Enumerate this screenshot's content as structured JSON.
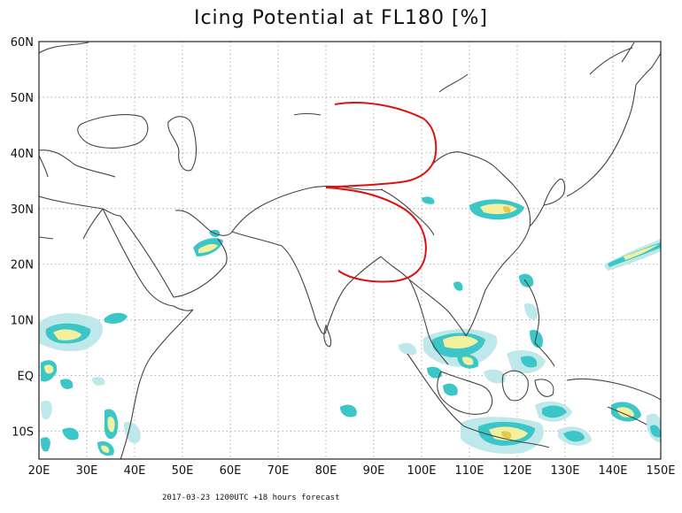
{
  "map": {
    "title": "Icing Potential at FL180 [%]",
    "footer": "2017-03-23 1200UTC  +18 hours forecast",
    "lon_ticks": [
      {
        "lon": 20,
        "label": "20E"
      },
      {
        "lon": 30,
        "label": "30E"
      },
      {
        "lon": 40,
        "label": "40E"
      },
      {
        "lon": 50,
        "label": "50E"
      },
      {
        "lon": 60,
        "label": "60E"
      },
      {
        "lon": 70,
        "label": "70E"
      },
      {
        "lon": 80,
        "label": "80E"
      },
      {
        "lon": 90,
        "label": "90E"
      },
      {
        "lon": 100,
        "label": "100E"
      },
      {
        "lon": 110,
        "label": "110E"
      },
      {
        "lon": 120,
        "label": "120E"
      },
      {
        "lon": 130,
        "label": "130E"
      },
      {
        "lon": 140,
        "label": "140E"
      },
      {
        "lon": 150,
        "label": "150E"
      }
    ],
    "lat_ticks": [
      {
        "lat": 60,
        "label": "60N"
      },
      {
        "lat": 50,
        "label": "50N"
      },
      {
        "lat": 40,
        "label": "40N"
      },
      {
        "lat": 30,
        "label": "30N"
      },
      {
        "lat": 20,
        "label": "20N"
      },
      {
        "lat": 10,
        "label": "10N"
      },
      {
        "lat": 0,
        "label": "EQ"
      },
      {
        "lat": -10,
        "label": "10S"
      }
    ],
    "lon_range": [
      20,
      150
    ],
    "lat_range": [
      -15,
      60
    ],
    "grid": "dotted",
    "colors": {
      "frame": "#222222",
      "coast": "#444444",
      "annotation": "#dd1111",
      "light": "#bfe8ea",
      "mid": "#3cc6c8",
      "high": "#f3f1a0",
      "peak": "#e8c84a"
    },
    "annotation": "red hand-drawn curved lines over Tibet / Himalaya region"
  }
}
